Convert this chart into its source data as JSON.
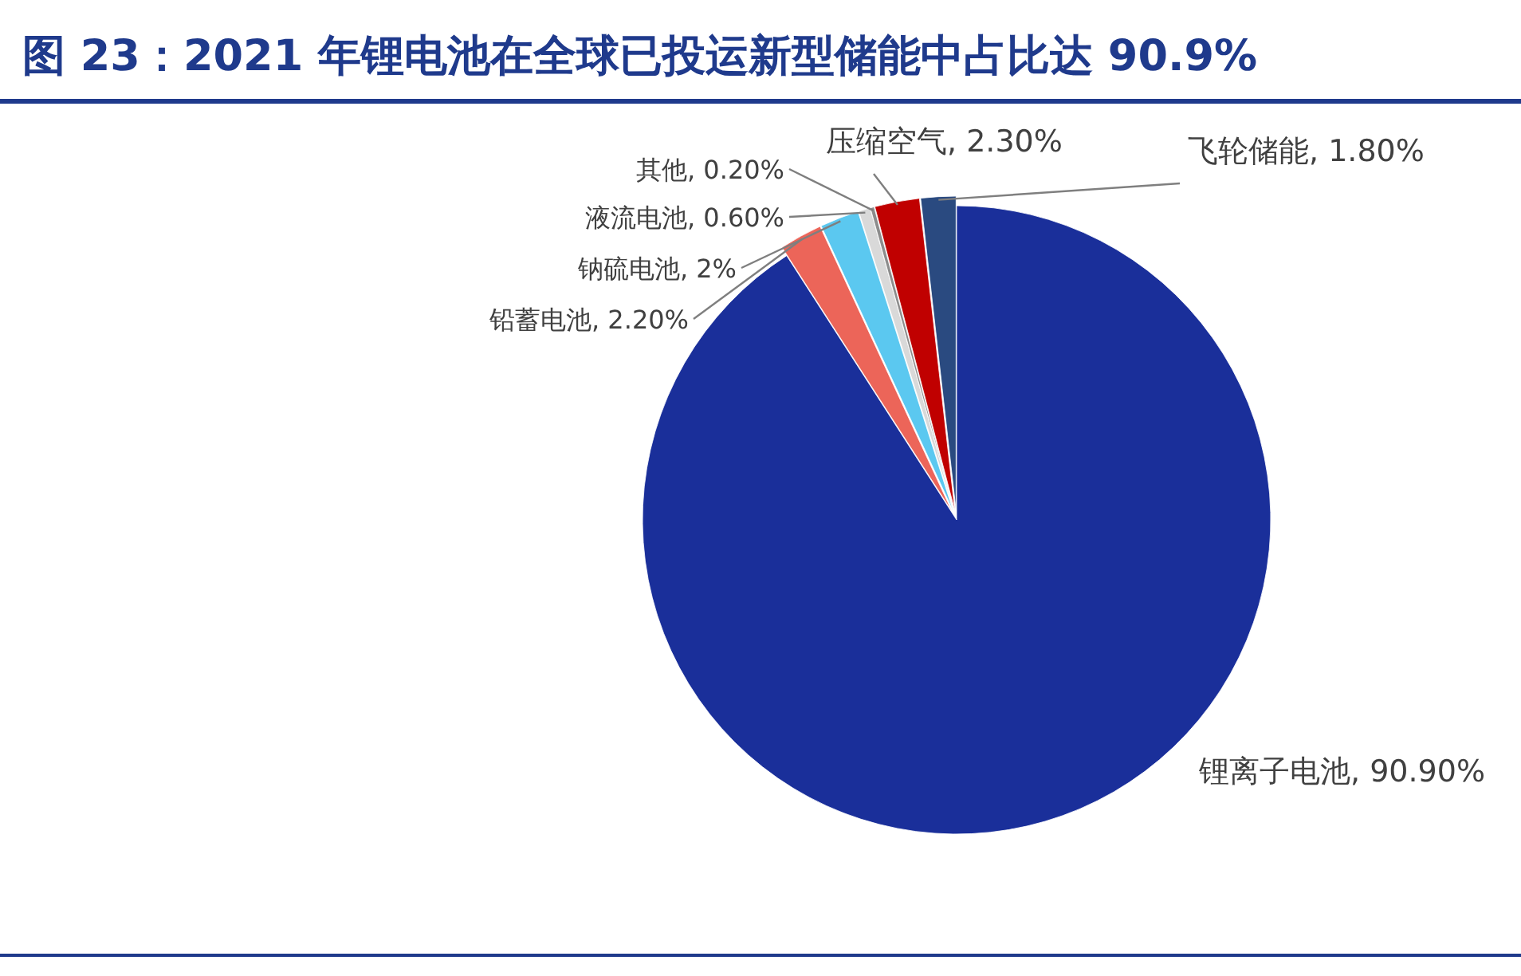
{
  "chart_data": {
    "type": "pie",
    "title": "图 23：2021 年锂电池在全球已投运新型储能中占比达 90.9%",
    "categories": [
      "锂离子电池",
      "铅蓄电池",
      "钠硫电池",
      "液流电池",
      "其他",
      "压缩空气",
      "飞轮储能"
    ],
    "values": [
      90.9,
      2.2,
      2,
      0.6,
      0.2,
      2.3,
      1.8
    ],
    "value_labels": [
      "90.90%",
      "2.20%",
      "2%",
      "0.60%",
      "0.20%",
      "2.30%",
      "1.80%"
    ],
    "colors": [
      "#1a2f9a",
      "#ec6559",
      "#5bc8f0",
      "#d9d9d9",
      "#8c8c8c",
      "#c00000",
      "#2a4a80"
    ]
  }
}
